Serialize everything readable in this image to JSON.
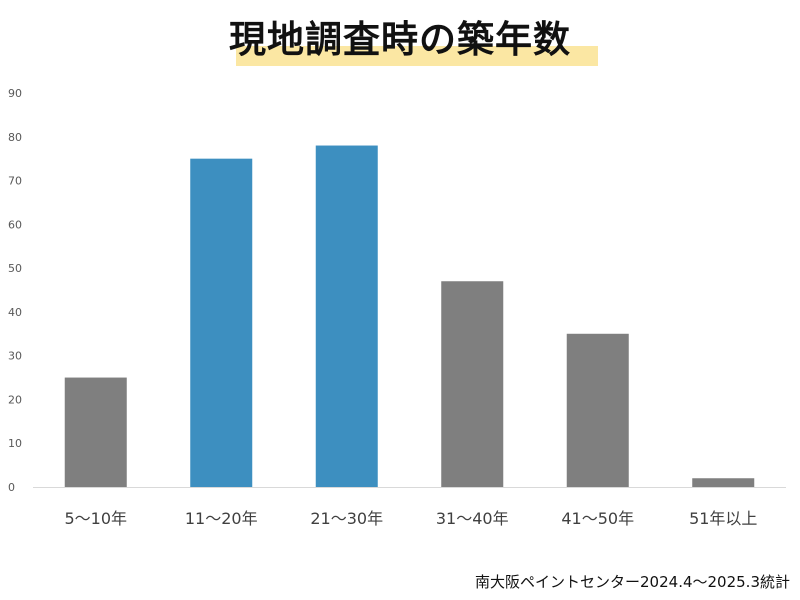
{
  "chart_data": {
    "type": "bar",
    "title": "現地調査時の築年数",
    "categories": [
      "5～10年",
      "11～20年",
      "21～30年",
      "31～40年",
      "41～50年",
      "51年以上"
    ],
    "values": [
      25,
      75,
      78,
      47,
      35,
      2
    ],
    "highlight": [
      false,
      true,
      true,
      false,
      false,
      false
    ],
    "ylim": [
      0,
      90
    ],
    "yticks": [
      "0",
      "10",
      "20",
      "30",
      "40",
      "50",
      "60",
      "70",
      "80",
      "90"
    ],
    "grid": false,
    "colors": {
      "default": "#7f7f7f",
      "highlight": "#3d8fc0",
      "title_band": "#fbe7a3"
    }
  },
  "footer": {
    "source": "南大阪ペイントセンター2024.4～2025.3統計"
  }
}
